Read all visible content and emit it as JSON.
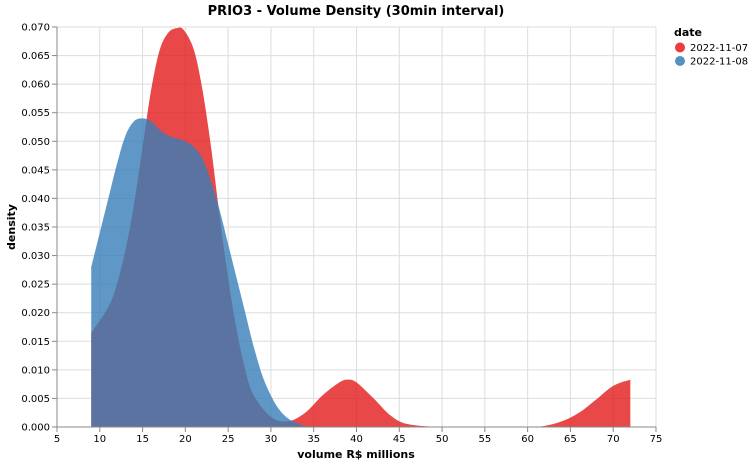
{
  "chart_data": {
    "type": "area",
    "title": "PRIO3 - Volume Density (30min interval)",
    "xlabel": "volume R$ millions",
    "ylabel": "density",
    "xlim": [
      5,
      75
    ],
    "ylim": [
      0,
      0.07
    ],
    "x_ticks": [
      "5",
      "10",
      "15",
      "20",
      "25",
      "30",
      "35",
      "40",
      "45",
      "50",
      "55",
      "60",
      "65",
      "70",
      "75"
    ],
    "y_ticks": [
      "0.000",
      "0.005",
      "0.010",
      "0.015",
      "0.020",
      "0.025",
      "0.030",
      "0.035",
      "0.040",
      "0.045",
      "0.050",
      "0.055",
      "0.060",
      "0.065",
      "0.070"
    ],
    "grid": true,
    "legend_title": "date",
    "legend_position": "top-right",
    "series": [
      {
        "name": "2022-11-07",
        "color": "#e41a1c",
        "x": [
          9,
          11,
          12,
          13,
          14,
          15,
          16,
          17,
          18,
          19,
          19.8,
          21,
          22,
          23,
          24,
          25,
          26,
          27,
          28,
          30,
          32,
          34,
          36,
          38,
          39,
          40,
          42,
          44,
          46,
          50,
          55,
          60,
          62,
          64,
          66,
          68,
          70,
          72
        ],
        "values": [
          0.0165,
          0.021,
          0.025,
          0.031,
          0.039,
          0.049,
          0.059,
          0.066,
          0.069,
          0.0698,
          0.0695,
          0.066,
          0.059,
          0.049,
          0.037,
          0.026,
          0.017,
          0.01,
          0.0055,
          0.0018,
          0.001,
          0.0025,
          0.0055,
          0.0078,
          0.0083,
          0.0078,
          0.005,
          0.002,
          0.0005,
          0.0,
          0.0,
          0.0,
          0.0002,
          0.001,
          0.0025,
          0.0048,
          0.0072,
          0.0083
        ]
      },
      {
        "name": "2022-11-08",
        "color": "#377eb8",
        "x": [
          9,
          10,
          11,
          12,
          13,
          14,
          15,
          16,
          17,
          18,
          19,
          20,
          21,
          22,
          23,
          24,
          25,
          26,
          27,
          28,
          29,
          30,
          31,
          32,
          33,
          34,
          35,
          36
        ],
        "values": [
          0.028,
          0.034,
          0.04,
          0.046,
          0.051,
          0.0535,
          0.054,
          0.0535,
          0.052,
          0.051,
          0.0505,
          0.05,
          0.049,
          0.047,
          0.043,
          0.038,
          0.032,
          0.026,
          0.02,
          0.014,
          0.009,
          0.0055,
          0.003,
          0.0015,
          0.0007,
          0.0002,
          0.0001,
          0.0
        ]
      }
    ]
  }
}
